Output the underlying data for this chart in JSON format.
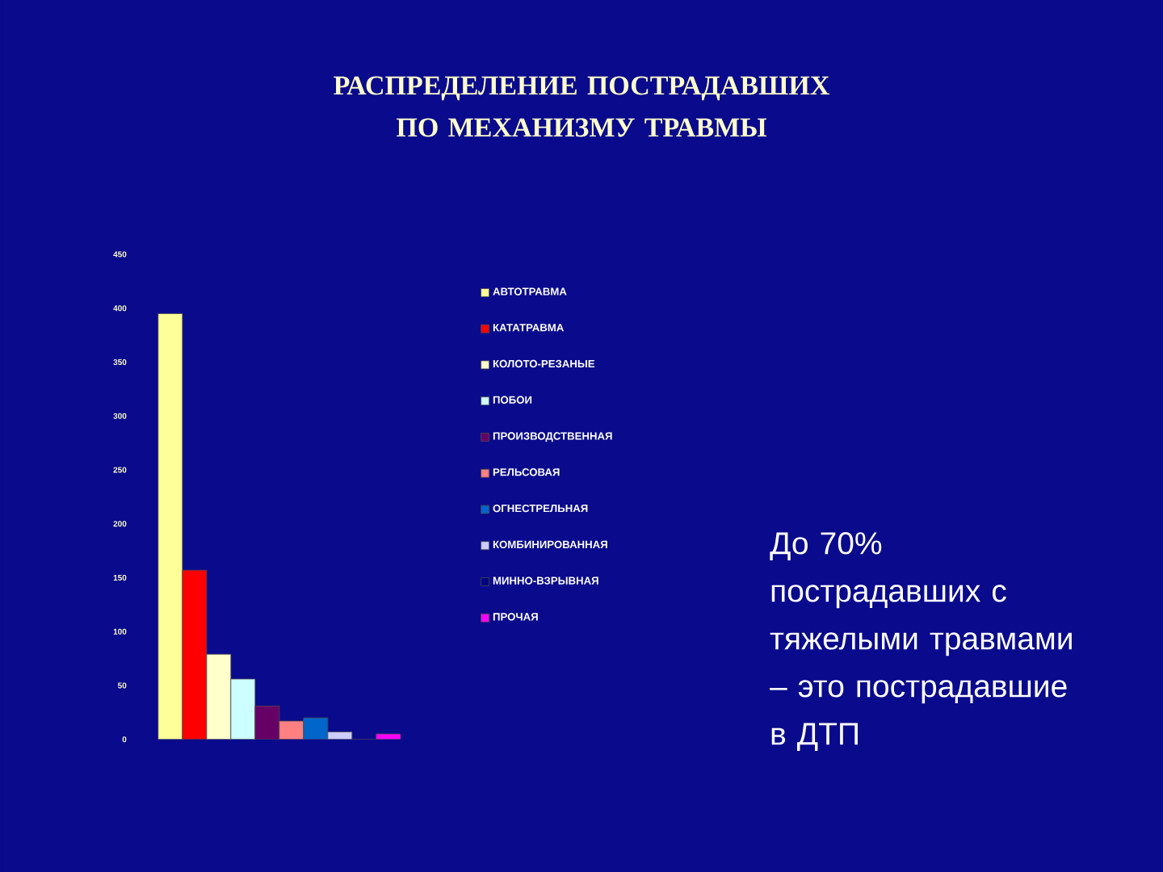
{
  "chart_data": {
    "type": "bar",
    "title": "РАСПРЕДЕЛЕНИЕ ПОСТРАДАВШИХ ПО МЕХАНИЗМУ ТРАВМЫ",
    "categories": [
      null
    ],
    "series": [
      {
        "name": "АВТОТРАВМА",
        "color": "#ffff99",
        "values": [
          395
        ]
      },
      {
        "name": "КАТАТРАВМА",
        "color": "#ff0000",
        "values": [
          157
        ]
      },
      {
        "name": "КОЛОТО-РЕЗАНЫЕ",
        "color": "#ffffcc",
        "values": [
          79
        ]
      },
      {
        "name": "ПОБОИ",
        "color": "#ccffff",
        "values": [
          56
        ]
      },
      {
        "name": "ПРОИЗВОДСТВЕННАЯ",
        "color": "#660066",
        "values": [
          31
        ]
      },
      {
        "name": "РЕЛЬСОВАЯ",
        "color": "#ff8080",
        "values": [
          17
        ]
      },
      {
        "name": "ОГНЕСТРЕЛЬНАЯ",
        "color": "#0066cc",
        "values": [
          20
        ]
      },
      {
        "name": "КОМБИНИРОВАННАЯ",
        "color": "#ccccff",
        "values": [
          7
        ]
      },
      {
        "name": "МИННО-ВЗРЫВНАЯ",
        "color": "#000080",
        "values": [
          0
        ]
      },
      {
        "name": "ПРОЧАЯ",
        "color": "#ff00ff",
        "values": [
          5
        ]
      }
    ],
    "ylim": [
      0,
      450
    ],
    "yticks": [
      0,
      50,
      100,
      150,
      200,
      250,
      300,
      350,
      400,
      450
    ],
    "legend": "top",
    "tick_labels": "y",
    "annotations": [
      "До 70% пострадавших с тяжелыми травмами – это пострадавшие в ДТП"
    ]
  }
}
